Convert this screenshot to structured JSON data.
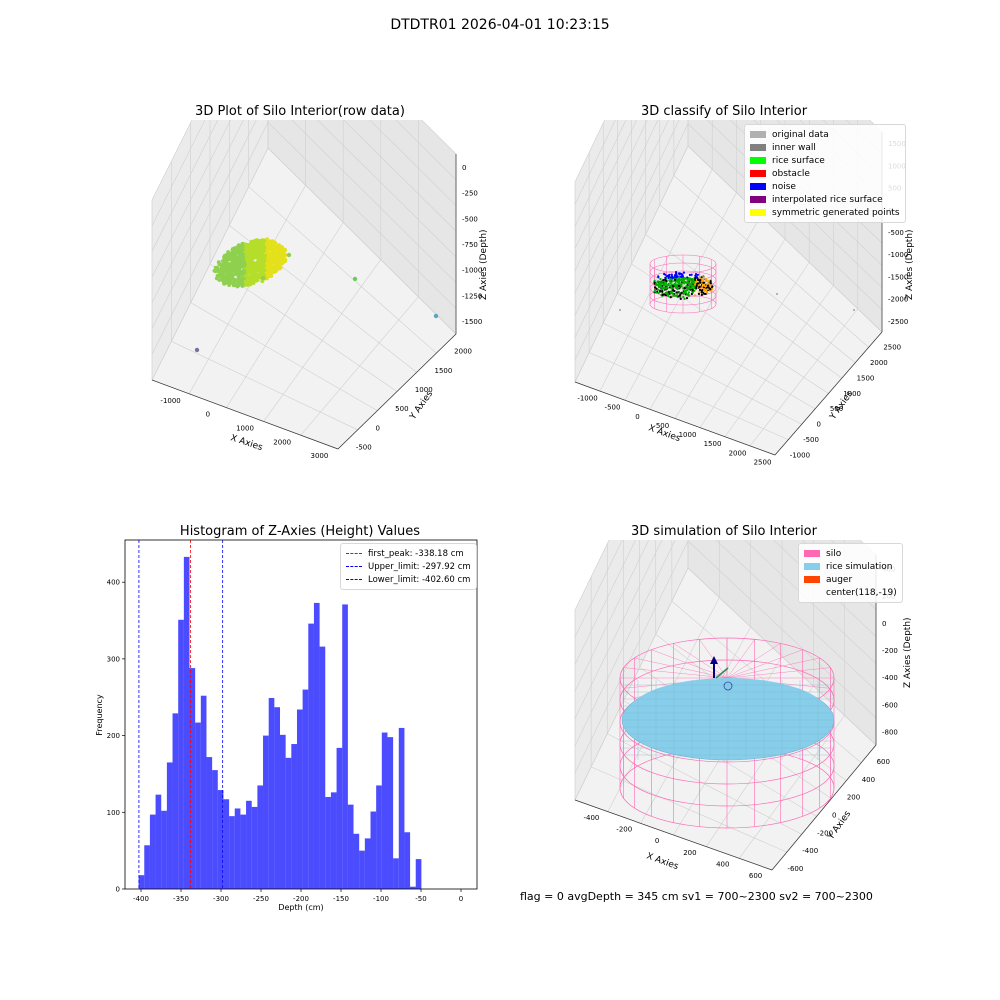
{
  "suptitle": "DTDTR01 2026-04-01 10:23:15",
  "colors": {
    "hist": "#0000ff",
    "first_peak": "#ff0000",
    "limits": "#0000ff",
    "silo": "#ff69b4",
    "rice_sim": "#87ceeb",
    "auger": "#ff4500"
  },
  "chart_data": [
    {
      "type": "scatter",
      "title": "3D Plot of Silo Interior(row data)",
      "xlabel": "X Axies",
      "ylabel": "Y Axies",
      "zlabel": "Z Axies (Depth)",
      "x_ticks": [
        "-1000",
        "0",
        "1000",
        "2000",
        "3000"
      ],
      "y_ticks": [
        "-500",
        "0",
        "500",
        "1000",
        "1500",
        "2000"
      ],
      "z_ticks": [
        "0",
        "-250",
        "-500",
        "-750",
        "-1000",
        "-1250",
        "-1500"
      ]
    },
    {
      "type": "scatter",
      "title": "3D classify of Silo Interior",
      "xlabel": "X Axies",
      "ylabel": "Y Axies",
      "zlabel": "Z Axies (Depth)",
      "x_ticks": [
        "-1000",
        "-500",
        "0",
        "500",
        "1000",
        "1500",
        "2000",
        "2500"
      ],
      "y_ticks": [
        "-1000",
        "-500",
        "0",
        "500",
        "1000",
        "1500",
        "2000",
        "2500"
      ],
      "z_ticks": [
        "1500",
        "1000",
        "500",
        "0",
        "-500",
        "-1000",
        "-1500",
        "-2000",
        "-2500"
      ],
      "legend": [
        {
          "label": "original data",
          "color": "#b0b0b0"
        },
        {
          "label": "inner wall",
          "color": "#808080"
        },
        {
          "label": "rice surface",
          "color": "#00ff00"
        },
        {
          "label": "obstacle",
          "color": "#ff0000"
        },
        {
          "label": "noise",
          "color": "#0000ff"
        },
        {
          "label": "interpolated rice surface",
          "color": "#800080"
        },
        {
          "label": "symmetric generated points",
          "color": "#ffff00"
        }
      ]
    },
    {
      "type": "bar",
      "title": "Histogram of Z-Axies (Height) Values",
      "xlabel": "Depth (cm)",
      "ylabel": "Frequency",
      "xlim": [
        -420,
        20
      ],
      "ylim": [
        0,
        455
      ],
      "x_ticks": [
        -400,
        -350,
        -300,
        -250,
        -200,
        -150,
        -100,
        -50,
        0
      ],
      "y_ticks": [
        0,
        100,
        200,
        300,
        400
      ],
      "bin_start": -403,
      "bin_width": 7.07,
      "values": [
        18,
        57,
        97,
        123,
        102,
        165,
        229,
        351,
        433,
        288,
        217,
        252,
        172,
        155,
        129,
        117,
        95,
        105,
        97,
        115,
        107,
        135,
        200,
        249,
        237,
        201,
        171,
        189,
        234,
        260,
        346,
        373,
        316,
        120,
        126,
        184,
        371,
        110,
        72,
        50,
        66,
        101,
        135,
        204,
        198,
        40,
        210,
        74,
        3,
        39
      ],
      "vlines": [
        {
          "label": "first_peak: -338.18 cm",
          "x": -338.18,
          "color": "#ff0000"
        },
        {
          "label": "Upper_limit: -297.92 cm",
          "x": -297.92,
          "color": "#0000ff"
        },
        {
          "label": "Lower_limit: -402.60 cm",
          "x": -402.6,
          "color": "#0000ff"
        }
      ]
    },
    {
      "type": "scatter",
      "title": "3D simulation of Silo Interior",
      "xlabel": "X Axies",
      "ylabel": "Y Axies",
      "zlabel": "Z Axies (Depth)",
      "x_ticks": [
        "-400",
        "-200",
        "0",
        "200",
        "400",
        "600"
      ],
      "y_ticks": [
        "-600",
        "-400",
        "-200",
        "0",
        "200",
        "400",
        "600"
      ],
      "z_ticks": [
        "400",
        "200",
        "0",
        "-200",
        "-400",
        "-600",
        "-800"
      ],
      "legend": [
        {
          "label": "silo",
          "color": "#ff69b4"
        },
        {
          "label": "rice simulation",
          "color": "#87ceeb"
        },
        {
          "label": "auger",
          "color": "#ff4500"
        },
        {
          "label": "center(118,-19)",
          "color": ""
        }
      ]
    }
  ],
  "footer": "flag = 0     avgDepth = 345 cm  sv1 = 700~2300  sv2 = 700~2300"
}
